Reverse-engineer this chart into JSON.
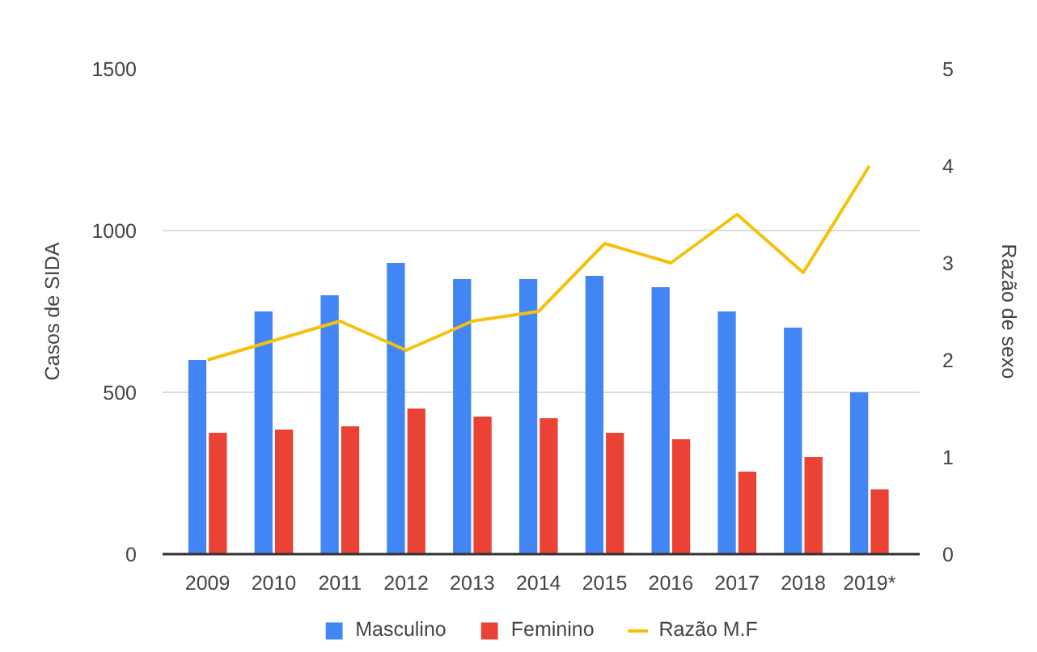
{
  "chart_data": {
    "type": "bar",
    "categories": [
      "2009",
      "2010",
      "2011",
      "2012",
      "2013",
      "2014",
      "2015",
      "2016",
      "2017",
      "2018",
      "2019*"
    ],
    "ylabel": "Casos de SIDA",
    "y2label": "Razão de sexo",
    "series": [
      {
        "name": "Masculino",
        "color": "#4285f4",
        "values": [
          600,
          750,
          800,
          900,
          850,
          850,
          860,
          825,
          750,
          700,
          500
        ]
      },
      {
        "name": "Feminino",
        "color": "#ea4335",
        "values": [
          375,
          385,
          395,
          450,
          425,
          420,
          375,
          355,
          255,
          300,
          200
        ]
      },
      {
        "name": "Razão M.F",
        "type": "line",
        "axis": "y2",
        "color": "#f4c20d",
        "values": [
          2.0,
          2.2,
          2.4,
          2.1,
          2.4,
          2.5,
          3.2,
          3.0,
          3.5,
          2.9,
          4.0
        ]
      }
    ],
    "ylim": [
      0,
      1500
    ],
    "yticks": [
      0,
      500,
      1000,
      1500
    ],
    "y2lim": [
      0,
      5
    ],
    "y2ticks": [
      0,
      1,
      2,
      3,
      4,
      5
    ],
    "grid": "y",
    "legend": "bottom"
  }
}
